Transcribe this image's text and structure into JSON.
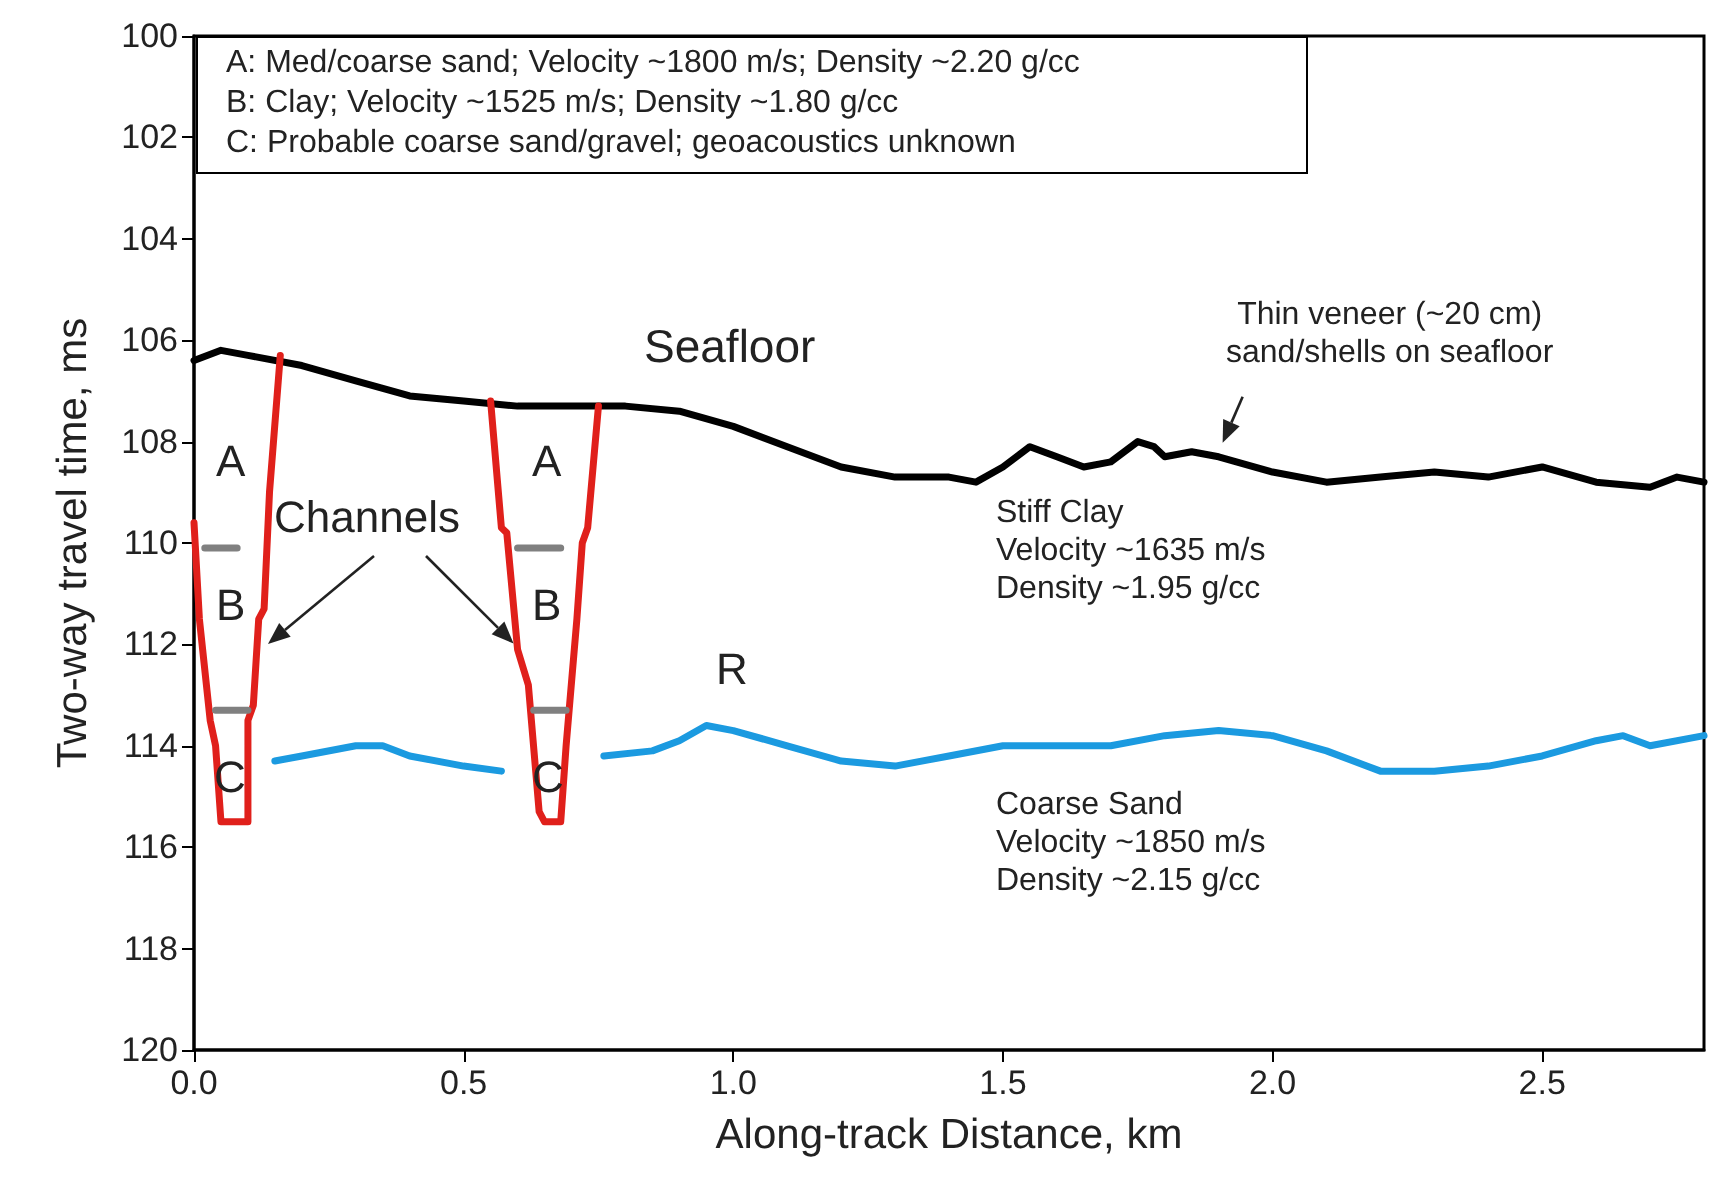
{
  "chart_data": {
    "type": "line",
    "xlabel": "Along-track Distance, km",
    "ylabel": "Two-way travel time, ms",
    "xlim": [
      0,
      2.8
    ],
    "xticks": [
      {
        "value": 0,
        "label": "0.0"
      },
      {
        "value": 0.5,
        "label": "0.5"
      },
      {
        "value": 1,
        "label": "1.0"
      },
      {
        "value": 1.5,
        "label": "1.5"
      },
      {
        "value": 2,
        "label": "2.0"
      },
      {
        "value": 2.5,
        "label": "2.5"
      }
    ],
    "ylim": [
      120,
      100
    ],
    "yticks": [
      100,
      102,
      104,
      106,
      108,
      110,
      112,
      114,
      116,
      118,
      120
    ],
    "marker": "none",
    "line_style": "solid",
    "series": [
      {
        "color": "#000000",
        "x": [
          0,
          0.05,
          0.1,
          0.2,
          0.3,
          0.4,
          0.5,
          0.6,
          0.7,
          0.8,
          0.9,
          1.0,
          1.1,
          1.2,
          1.3,
          1.4,
          1.45,
          1.5,
          1.55,
          1.6,
          1.65,
          1.7,
          1.75,
          1.78,
          1.8,
          1.85,
          1.9,
          2.0,
          2.1,
          2.2,
          2.3,
          2.4,
          2.5,
          2.6,
          2.7,
          2.75,
          2.8
        ],
        "values": [
          106.4,
          106.2,
          106.3,
          106.5,
          106.8,
          107.1,
          107.2,
          107.3,
          107.3,
          107.3,
          107.4,
          107.7,
          108.1,
          108.5,
          108.7,
          108.7,
          108.8,
          108.5,
          108.1,
          108.3,
          108.5,
          108.4,
          108.0,
          108.1,
          108.3,
          108.2,
          108.3,
          108.6,
          108.8,
          108.7,
          108.6,
          108.7,
          108.5,
          108.8,
          108.9,
          108.7,
          108.8
        ]
      },
      {
        "color": "#1b9ae0",
        "x": [
          0.15,
          0.2,
          0.3,
          0.35,
          0.4,
          0.5,
          0.57
        ],
        "values": [
          114.3,
          114.2,
          114.0,
          114.0,
          114.2,
          114.4,
          114.5
        ]
      },
      {
        "color": "#1b9ae0",
        "x": [
          0.76,
          0.85,
          0.9,
          0.95,
          1.0,
          1.1,
          1.2,
          1.3,
          1.4,
          1.5,
          1.6,
          1.7,
          1.8,
          1.9,
          2.0,
          2.1,
          2.2,
          2.3,
          2.4,
          2.5,
          2.6,
          2.65,
          2.7,
          2.8
        ],
        "values": [
          114.2,
          114.1,
          113.9,
          113.6,
          113.7,
          114.0,
          114.3,
          114.4,
          114.2,
          114.0,
          114.0,
          114.0,
          113.8,
          113.7,
          113.8,
          114.1,
          114.5,
          114.5,
          114.4,
          114.2,
          113.9,
          113.8,
          114.0,
          113.8
        ]
      },
      {
        "color": "#e0201b",
        "x": [
          0.0,
          0.01,
          0.03,
          0.04,
          0.05,
          0.1,
          0.1,
          0.11,
          0.12,
          0.13,
          0.14,
          0.16
        ],
        "values": [
          109.6,
          111.5,
          113.5,
          114.0,
          115.5,
          115.5,
          113.5,
          113.2,
          111.5,
          111.3,
          109.0,
          106.3
        ]
      },
      {
        "color": "#e0201b",
        "x": [
          0.55,
          0.57,
          0.58,
          0.6,
          0.62,
          0.64,
          0.65,
          0.68,
          0.69,
          0.71,
          0.72,
          0.73,
          0.75
        ],
        "values": [
          107.2,
          109.7,
          109.8,
          112.1,
          112.8,
          115.3,
          115.5,
          115.5,
          114.0,
          111.5,
          110.0,
          109.7,
          107.3
        ]
      },
      {
        "color": "#808080",
        "x": [
          0.02,
          0.08
        ],
        "values": [
          110.1,
          110.1
        ]
      },
      {
        "color": "#808080",
        "x": [
          0.04,
          0.1
        ],
        "values": [
          113.3,
          113.3
        ]
      },
      {
        "color": "#808080",
        "x": [
          0.6,
          0.68
        ],
        "values": [
          110.1,
          110.1
        ]
      },
      {
        "color": "#808080",
        "x": [
          0.63,
          0.69
        ],
        "values": [
          113.3,
          113.3
        ]
      }
    ],
    "annotations": [
      "A: Med/coarse sand; Velocity ~1800 m/s; Density ~2.20 g/cc",
      "B: Clay; Velocity ~1525 m/s; Density ~1.80 g/cc",
      "C: Probable coarse sand/gravel; geoacoustics unknown",
      "A",
      "B",
      "C",
      "A",
      "B",
      "C",
      {
        "text": "Channels",
        "x": 0.6,
        "y": 112.1
      },
      "Seafloor",
      "R",
      {
        "text": "Thin veneer (~20 cm)\nsand/shells on seafloor",
        "x": 1.9,
        "y": 108.3
      },
      "Stiff Clay\nVelocity ~1635 m/s\nDensity ~1.95 g/cc",
      "Coarse Sand\nVelocity ~1850 m/s\nDensity ~2.15 g/cc"
    ]
  }
}
